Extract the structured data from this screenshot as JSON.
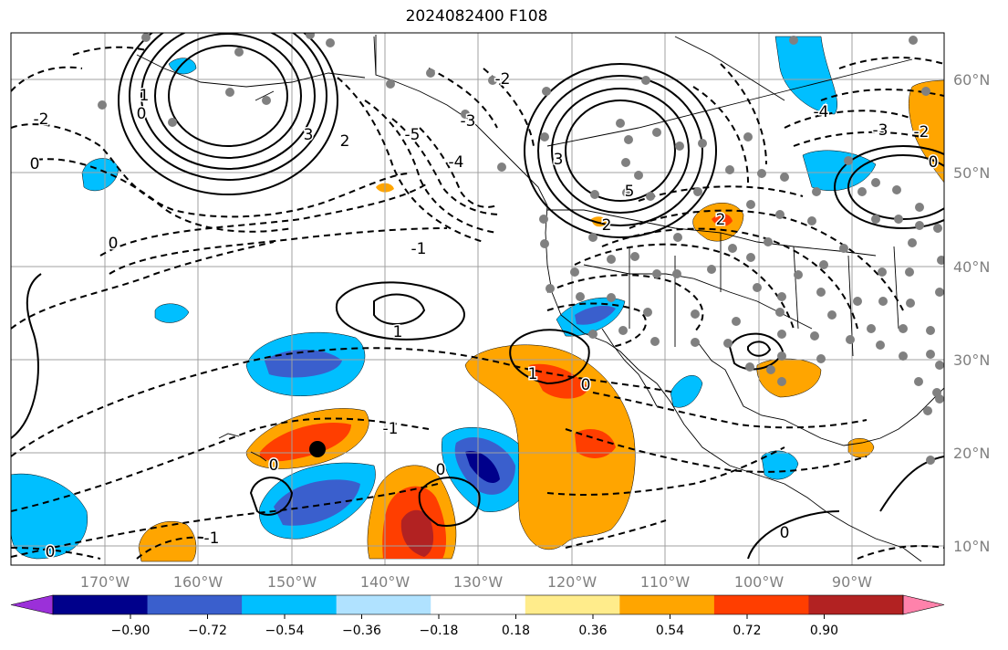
{
  "title": "2024082400 F108",
  "map": {
    "lat_labels": [
      "60°N",
      "50°N",
      "40°N",
      "30°N",
      "20°N",
      "10°N"
    ],
    "lon_labels": [
      "170°W",
      "160°W",
      "150°W",
      "140°W",
      "130°W",
      "120°W",
      "110°W",
      "100°W",
      "90°W"
    ],
    "contour_labels": [
      "-2",
      "0",
      "1",
      "2",
      "3",
      "-5",
      "-4",
      "-3",
      "-2",
      "-1",
      "1",
      "3",
      "5",
      "-4",
      "-3",
      "-2",
      "0",
      "2",
      "2",
      "0",
      "-1",
      "0",
      "1",
      "-1",
      "0",
      "0",
      "0",
      "0",
      "0"
    ],
    "marker_color": "#808080",
    "highlight_point": "black-dot"
  },
  "colorbar": {
    "colors": [
      "#9b30d9",
      "#00008b",
      "#3a5fcd",
      "#00bfff",
      "#b0e2ff",
      "#ffffff",
      "#ffec8b",
      "#ffa500",
      "#ff3e00",
      "#b22222",
      "#ff82ab"
    ],
    "tick_labels": [
      "−0.90",
      "−0.72",
      "−0.54",
      "−0.36",
      "−0.18",
      "0.18",
      "0.36",
      "0.54",
      "0.72",
      "0.90"
    ]
  }
}
